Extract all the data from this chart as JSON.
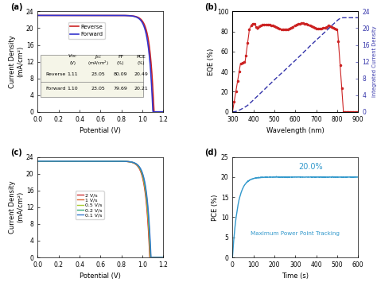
{
  "panel_a": {
    "title": "(a)",
    "xlabel": "Potential (V)",
    "ylabel": "Current Density\n(mA/cm²)",
    "xlim": [
      0.0,
      1.2
    ],
    "ylim": [
      0,
      24
    ],
    "yticks": [
      0,
      4,
      8,
      12,
      16,
      20,
      24
    ],
    "xticks": [
      0.0,
      0.2,
      0.4,
      0.6,
      0.8,
      1.0,
      1.2
    ],
    "reverse_color": "#cc2222",
    "forward_color": "#3333cc",
    "table_rows": [
      [
        "Reverse",
        "1.11",
        "23.05",
        "80.09",
        "20.49"
      ],
      [
        "Forward",
        "1.10",
        "23.05",
        "79.69",
        "20.21"
      ]
    ]
  },
  "panel_b": {
    "title": "(b)",
    "xlabel": "Wavelength (nm)",
    "ylabel_left": "EQE (%)",
    "ylabel_right": "Integrated Current Density\n(mA/cm²)",
    "xlim": [
      300,
      900
    ],
    "ylim_left": [
      0,
      100
    ],
    "ylim_right": [
      0,
      24
    ],
    "yticks_left": [
      0,
      20,
      40,
      60,
      80,
      100
    ],
    "yticks_right": [
      0,
      4,
      8,
      12,
      16,
      20,
      24
    ],
    "xticks": [
      300,
      400,
      500,
      600,
      700,
      800,
      900
    ],
    "eqe_color": "#cc2222",
    "integrated_color": "#3333aa"
  },
  "panel_c": {
    "title": "(c)",
    "xlabel": "Potential (V)",
    "ylabel": "Current Density\n(mA/cm²)",
    "xlim": [
      0.0,
      1.2
    ],
    "ylim": [
      0,
      24
    ],
    "yticks": [
      0,
      4,
      8,
      12,
      16,
      20,
      24
    ],
    "xticks": [
      0.0,
      0.2,
      0.4,
      0.6,
      0.8,
      1.0,
      1.2
    ],
    "scan_rates": [
      "2 V/s",
      "1 V/s",
      "0.5 V/s",
      "0.2 V/s",
      "0.1 V/s"
    ],
    "scan_colors": [
      "#cc3333",
      "#dd6633",
      "#aacc33",
      "#33aa77",
      "#3377cc"
    ]
  },
  "panel_d": {
    "title": "(d)",
    "xlabel": "Time (s)",
    "ylabel": "PCE (%)",
    "xlim": [
      0,
      600
    ],
    "ylim": [
      0,
      25
    ],
    "yticks": [
      0,
      5,
      10,
      15,
      20,
      25
    ],
    "xticks": [
      0,
      100,
      200,
      300,
      400,
      500,
      600
    ],
    "curve_color": "#3399cc",
    "steady_value": 20.0,
    "annotation": "20.0%",
    "annotation2": "Maximum Power Point Tracking"
  }
}
